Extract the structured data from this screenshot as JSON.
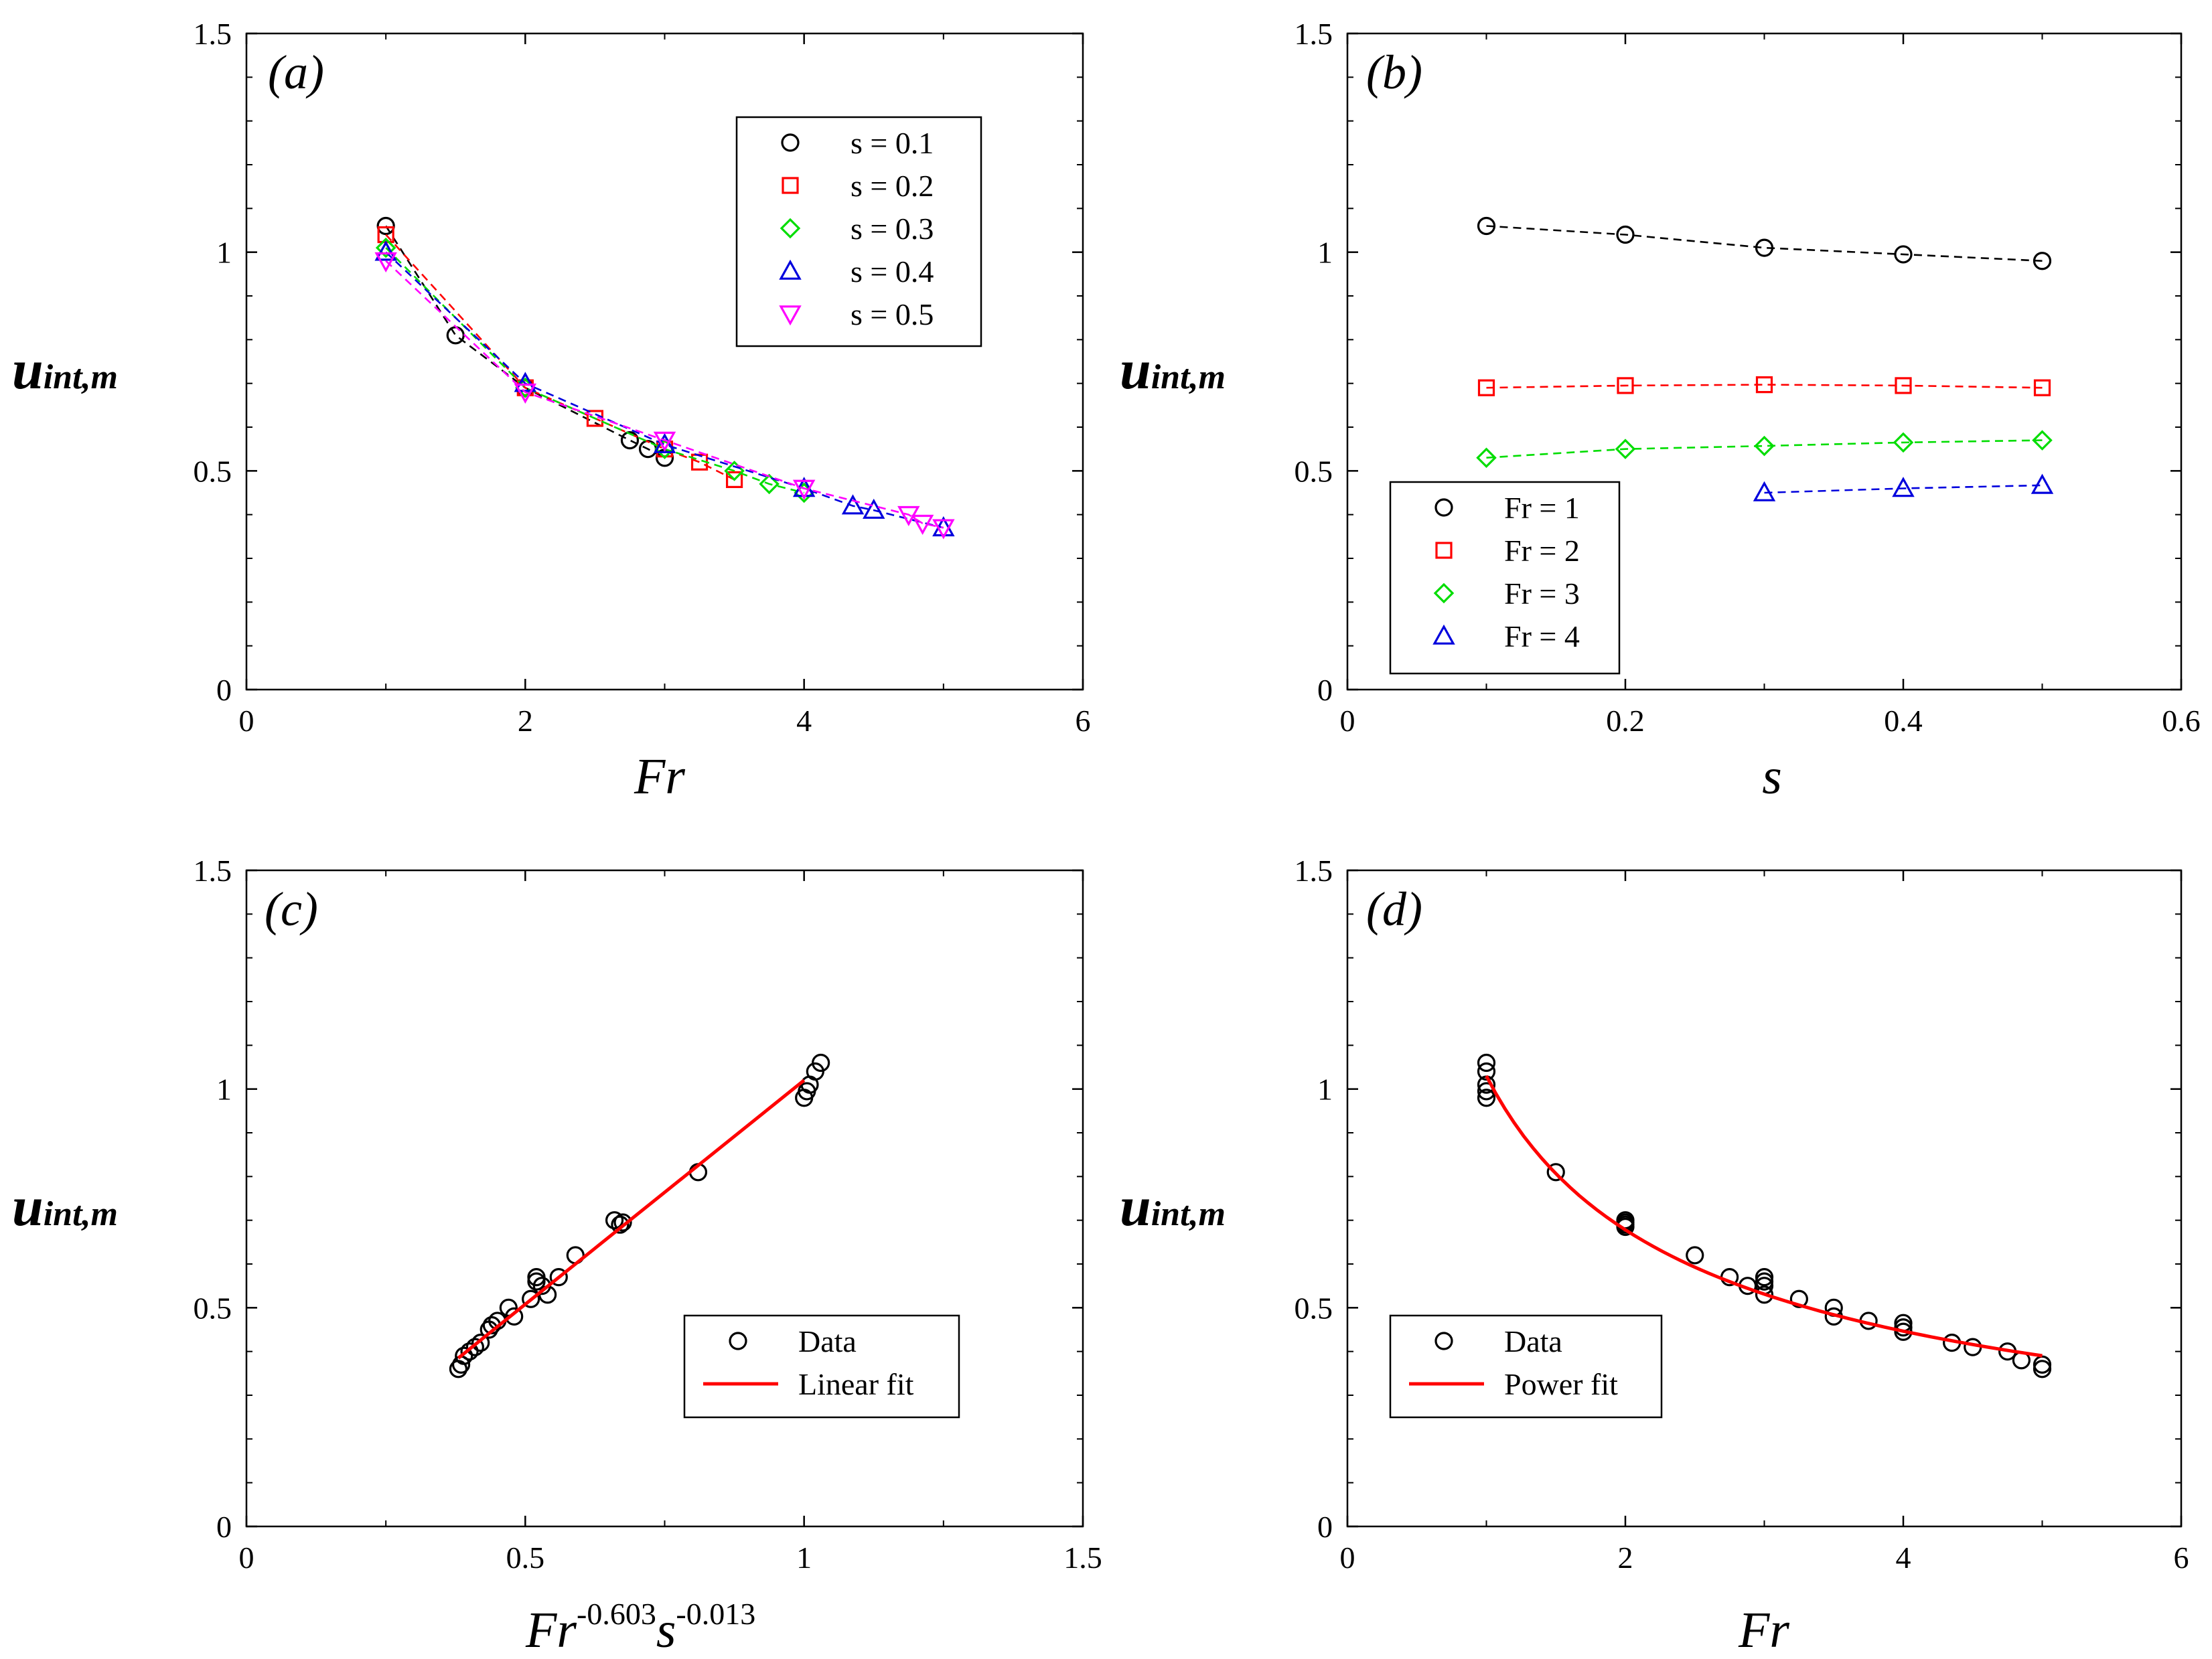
{
  "colors": {
    "s=0.1": "#000000",
    "s=0.2": "#ff0000",
    "s=0.3": "#00dd00",
    "s=0.4": "#0000dd",
    "s=0.5": "#ff00ff",
    "Fr=1": "#000000",
    "Fr=2": "#ff0000",
    "Fr=3": "#00dd00",
    "Fr=4": "#0000dd",
    "fit": "#ff0000",
    "axis": "#000000"
  },
  "chart_data": [
    {
      "id": "a",
      "panel_label": "(a)",
      "type": "scatter",
      "xlabel": "Fr",
      "ylabel": {
        "main": "u",
        "sub": "int,m"
      },
      "xlim": [
        0,
        6
      ],
      "ylim": [
        0,
        1.5
      ],
      "xticks": [
        "0",
        "2",
        "4",
        "6"
      ],
      "yticks": [
        "0",
        "0.5",
        "1",
        "1.5"
      ],
      "legend_position": "top-right",
      "series": [
        {
          "name": "s = 0.1",
          "marker": "circle",
          "color_key": "s=0.1",
          "dashed": true,
          "x": [
            1,
            1.5,
            2,
            2.75,
            2.88,
            3
          ],
          "y": [
            1.06,
            0.81,
            0.69,
            0.57,
            0.55,
            0.53
          ]
        },
        {
          "name": "s = 0.2",
          "marker": "square",
          "color_key": "s=0.2",
          "dashed": true,
          "x": [
            1,
            2,
            2.5,
            3,
            3.25,
            3.5
          ],
          "y": [
            1.04,
            0.69,
            0.62,
            0.55,
            0.52,
            0.48
          ]
        },
        {
          "name": "s = 0.3",
          "marker": "diamond",
          "color_key": "s=0.3",
          "dashed": true,
          "x": [
            1,
            2,
            3,
            3.5,
            3.75,
            4
          ],
          "y": [
            1.01,
            0.69,
            0.55,
            0.5,
            0.47,
            0.45
          ]
        },
        {
          "name": "s = 0.4",
          "marker": "triangle-up",
          "color_key": "s=0.4",
          "dashed": true,
          "x": [
            1,
            2,
            3,
            4,
            4.35,
            4.5,
            5
          ],
          "y": [
            1.0,
            0.7,
            0.56,
            0.46,
            0.42,
            0.41,
            0.37
          ]
        },
        {
          "name": "s = 0.5",
          "marker": "triangle-down",
          "color_key": "s=0.5",
          "dashed": true,
          "x": [
            1,
            2,
            3,
            4,
            4.75,
            4.85,
            5
          ],
          "y": [
            0.98,
            0.68,
            0.57,
            0.46,
            0.4,
            0.38,
            0.37
          ]
        }
      ]
    },
    {
      "id": "b",
      "panel_label": "(b)",
      "type": "scatter",
      "xlabel": "s",
      "ylabel": {
        "main": "u",
        "sub": "int,m"
      },
      "xlim": [
        0,
        0.6
      ],
      "ylim": [
        0,
        1.5
      ],
      "xticks": [
        "0",
        "0.2",
        "0.4",
        "0.6"
      ],
      "yticks": [
        "0",
        "0.5",
        "1",
        "1.5"
      ],
      "legend_position": "bottom-left",
      "series": [
        {
          "name": "Fr = 1",
          "marker": "circle",
          "color_key": "Fr=1",
          "dashed": true,
          "x": [
            0.1,
            0.2,
            0.3,
            0.4,
            0.5
          ],
          "y": [
            1.06,
            1.04,
            1.01,
            0.995,
            0.98
          ]
        },
        {
          "name": "Fr = 2",
          "marker": "square",
          "color_key": "Fr=2",
          "dashed": true,
          "x": [
            0.1,
            0.2,
            0.3,
            0.4,
            0.5
          ],
          "y": [
            0.69,
            0.695,
            0.697,
            0.695,
            0.69
          ]
        },
        {
          "name": "Fr = 3",
          "marker": "diamond",
          "color_key": "Fr=3",
          "dashed": true,
          "x": [
            0.1,
            0.2,
            0.3,
            0.4,
            0.5
          ],
          "y": [
            0.53,
            0.55,
            0.557,
            0.565,
            0.57
          ]
        },
        {
          "name": "Fr = 4",
          "marker": "triangle-up",
          "color_key": "Fr=4",
          "dashed": true,
          "x": [
            0.3,
            0.4,
            0.5
          ],
          "y": [
            0.45,
            0.46,
            0.467
          ]
        }
      ]
    },
    {
      "id": "c",
      "panel_label": "(c)",
      "type": "scatter",
      "xlabel": {
        "base": "Fr",
        "exp1": "-0.603",
        "mid": "s",
        "exp2": "-0.013"
      },
      "ylabel": {
        "main": "u",
        "sub": "int,m"
      },
      "xlim": [
        0,
        1.5
      ],
      "ylim": [
        0,
        1.5
      ],
      "xticks": [
        "0",
        "0.5",
        "1",
        "1.5"
      ],
      "yticks": [
        "0",
        "0.5",
        "1",
        "1.5"
      ],
      "legend_position": "bottom-right",
      "series": [
        {
          "name": "Data",
          "marker": "circle",
          "color_key": "axis",
          "dashed": false,
          "line": false,
          "x": [
            1.03,
            1.02,
            1.01,
            1.005,
            1.0,
            0.81,
            0.67,
            0.66,
            0.675,
            0.59,
            0.56,
            0.52,
            0.52,
            0.53,
            0.54,
            0.51,
            0.47,
            0.48,
            0.45,
            0.44,
            0.435,
            0.42,
            0.41,
            0.4,
            0.39,
            0.385,
            0.38
          ],
          "y": [
            1.06,
            1.04,
            1.01,
            0.995,
            0.98,
            0.81,
            0.69,
            0.7,
            0.695,
            0.62,
            0.57,
            0.57,
            0.56,
            0.55,
            0.53,
            0.52,
            0.5,
            0.48,
            0.47,
            0.46,
            0.45,
            0.42,
            0.41,
            0.4,
            0.39,
            0.37,
            0.36
          ]
        },
        {
          "name": "Linear fit",
          "marker": "none",
          "color_key": "fit",
          "dashed": false,
          "line": true,
          "x": [
            0.38,
            1.0
          ],
          "y": [
            0.385,
            1.02
          ]
        }
      ]
    },
    {
      "id": "d",
      "panel_label": "(d)",
      "type": "scatter",
      "xlabel": "Fr",
      "ylabel": {
        "main": "u",
        "sub": "int,m"
      },
      "xlim": [
        0,
        6
      ],
      "ylim": [
        0,
        1.5
      ],
      "xticks": [
        "0",
        "2",
        "4",
        "6"
      ],
      "yticks": [
        "0",
        "0.5",
        "1",
        "1.5"
      ],
      "legend_position": "bottom-left",
      "series": [
        {
          "name": "Data",
          "marker": "circle",
          "color_key": "axis",
          "dashed": false,
          "line": false,
          "x": [
            1,
            1,
            1,
            1,
            1,
            1.5,
            2,
            2,
            2,
            2,
            2.5,
            2.75,
            2.88,
            3,
            3,
            3,
            3,
            3.25,
            3.5,
            3.5,
            3.75,
            4,
            4,
            4,
            4.35,
            4.5,
            4.75,
            4.85,
            5,
            5
          ],
          "y": [
            1.06,
            1.04,
            1.01,
            0.995,
            0.98,
            0.81,
            0.7,
            0.695,
            0.69,
            0.685,
            0.62,
            0.57,
            0.55,
            0.57,
            0.56,
            0.55,
            0.53,
            0.52,
            0.5,
            0.48,
            0.47,
            0.465,
            0.455,
            0.445,
            0.42,
            0.41,
            0.4,
            0.38,
            0.37,
            0.36
          ]
        },
        {
          "name": "Power fit",
          "marker": "none",
          "color_key": "fit",
          "dashed": false,
          "line": true,
          "curve": "power",
          "coef": 1.03,
          "exponent": -0.603,
          "x_range": [
            1,
            5
          ]
        }
      ]
    }
  ]
}
